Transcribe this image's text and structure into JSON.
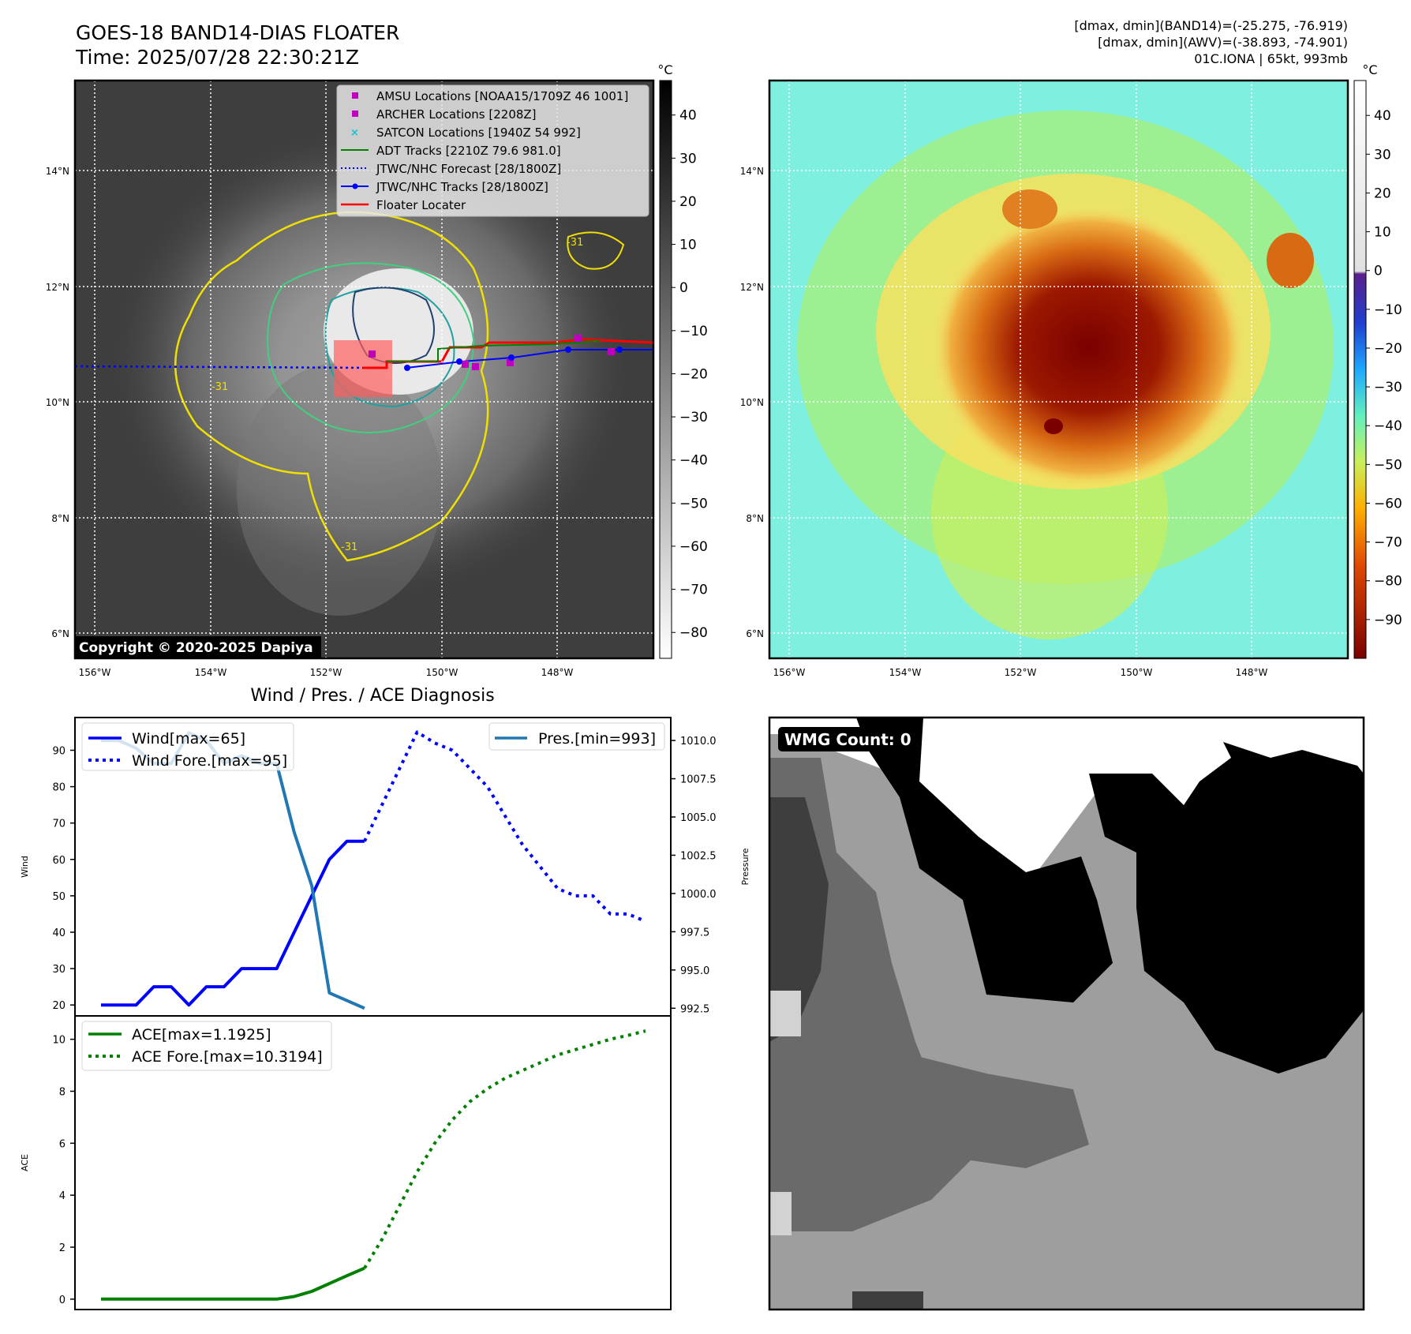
{
  "header": {
    "title_line1": "GOES-18 BAND14-DIAS FLOATER",
    "title_line2": "Time: 2025/07/28 22:30:21Z",
    "info_line1": "[dmax, dmin](BAND14)=(-25.275, -76.919)",
    "info_line2": "[dmax, dmin](AWV)=(-38.893, -74.901)",
    "info_line3": "01C.IONA | 65kt, 993mb"
  },
  "maps": {
    "lat_labels": [
      "14°N",
      "12°N",
      "10°N",
      "8°N",
      "6°N"
    ],
    "lon_labels": [
      "156°W",
      "154°W",
      "152°W",
      "150°W",
      "148°W"
    ],
    "copyright": "Copyright © 2020-2025 Dapiya",
    "contour_label": "-31"
  },
  "colorbar_left": {
    "unit": "°C",
    "ticks": [
      "40",
      "30",
      "20",
      "10",
      "0",
      "−10",
      "−20",
      "−30",
      "−40",
      "−50",
      "−60",
      "−70",
      "−80"
    ]
  },
  "colorbar_right": {
    "unit": "°C",
    "ticks": [
      "40",
      "30",
      "20",
      "10",
      "0",
      "−10",
      "−20",
      "−30",
      "−40",
      "−50",
      "−60",
      "−70",
      "−80",
      "−90"
    ]
  },
  "legend_map": {
    "items": [
      {
        "label": "AMSU Locations [NOAA15/1709Z 46 1001]",
        "marker": "square",
        "color": "#bf00bf"
      },
      {
        "label": "ARCHER Locations [2208Z]",
        "marker": "square",
        "color": "#bf00bf"
      },
      {
        "label": "SATCON Locations [1940Z 54 992]",
        "marker": "x",
        "color": "#17becf"
      },
      {
        "label": "ADT Tracks [2210Z 79.6 981.0]",
        "marker": "line",
        "color": "#008000"
      },
      {
        "label": "JTWC/NHC Forecast [28/1800Z]",
        "marker": "dotted",
        "color": "#0000ff"
      },
      {
        "label": "JTWC/NHC Tracks [28/1800Z]",
        "marker": "line-dot",
        "color": "#0000ff"
      },
      {
        "label": "Floater Locater",
        "marker": "line",
        "color": "#ff0000"
      }
    ]
  },
  "wmg": {
    "label": "WMG Count: 0"
  },
  "chart_data": [
    {
      "type": "line",
      "title": "Wind / Pres. / ACE Diagnosis",
      "ylabel": "Wind",
      "y2label": "Pressure",
      "ylim": [
        17,
        99
      ],
      "y2lim": [
        992.0,
        1011.5
      ],
      "yticks": [
        20,
        30,
        40,
        50,
        60,
        70,
        80,
        90
      ],
      "y2ticks": [
        992.5,
        995.0,
        997.5,
        1000.0,
        1002.5,
        1005.0,
        1007.5,
        1010.0
      ],
      "legend_left": [
        "Wind[max=65]",
        "Wind Fore.[max=95]"
      ],
      "legend_right": [
        "Pres.[min=993]"
      ],
      "series": [
        {
          "name": "Wind[max=65]",
          "axis": "left",
          "color": "#0000ff",
          "style": "solid",
          "x": [
            0,
            1,
            2,
            3,
            4,
            5,
            6,
            7,
            8,
            9,
            10,
            11,
            12,
            13,
            14,
            15
          ],
          "y": [
            20,
            20,
            20,
            25,
            25,
            20,
            25,
            25,
            30,
            30,
            30,
            40,
            50,
            60,
            65,
            65
          ]
        },
        {
          "name": "Wind Fore.[max=95]",
          "axis": "left",
          "color": "#0000ff",
          "style": "dotted",
          "x": [
            15,
            16,
            17,
            18,
            19,
            20,
            21,
            22,
            23,
            24,
            25,
            26,
            27,
            28,
            29,
            30,
            31
          ],
          "y": [
            65,
            75,
            85,
            95,
            92,
            90,
            85,
            80,
            72,
            64,
            58,
            52,
            50,
            50,
            45,
            45,
            43
          ]
        },
        {
          "name": "Pres.[min=993]",
          "axis": "right",
          "color": "#1f77b4",
          "style": "solid",
          "x": [
            0,
            1,
            2,
            3,
            4,
            5,
            6,
            7,
            8,
            9,
            10,
            11,
            12,
            13,
            14,
            15
          ],
          "y": [
            1010.0,
            1010.0,
            1009.5,
            1008.5,
            1008.5,
            1010.5,
            1010.0,
            1008.5,
            1009.0,
            1008.5,
            1008.5,
            1004.0,
            1000.5,
            993.5,
            993.0,
            992.5
          ]
        }
      ]
    },
    {
      "type": "line",
      "ylabel": "ACE",
      "ylim": [
        -0.4,
        10.9
      ],
      "yticks": [
        0,
        2,
        4,
        6,
        8,
        10
      ],
      "legend": [
        "ACE[max=1.1925]",
        "ACE Fore.[max=10.3194]"
      ],
      "series": [
        {
          "name": "ACE[max=1.1925]",
          "color": "#008000",
          "style": "solid",
          "x": [
            0,
            1,
            2,
            3,
            4,
            5,
            6,
            7,
            8,
            9,
            10,
            11,
            12,
            13,
            14,
            15
          ],
          "y": [
            0,
            0,
            0,
            0,
            0,
            0,
            0,
            0,
            0,
            0,
            0,
            0.1,
            0.3,
            0.6,
            0.9,
            1.1925
          ]
        },
        {
          "name": "ACE Fore.[max=10.3194]",
          "color": "#008000",
          "style": "dotted",
          "x": [
            15,
            16,
            17,
            18,
            19,
            20,
            21,
            22,
            23,
            24,
            25,
            26,
            27,
            28,
            29,
            30,
            31
          ],
          "y": [
            1.1925,
            2.3,
            3.6,
            4.9,
            6.0,
            6.9,
            7.6,
            8.1,
            8.5,
            8.8,
            9.1,
            9.4,
            9.6,
            9.8,
            10.0,
            10.15,
            10.3194
          ]
        }
      ]
    }
  ]
}
